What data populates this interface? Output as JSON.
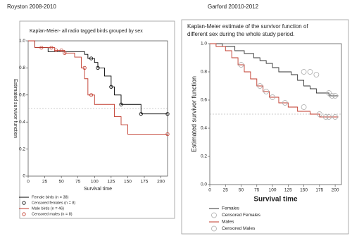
{
  "chart_data": [
    {
      "type": "step",
      "panel_heading": "Royston 2008-2010",
      "title": [
        "Kaplan-Meier-  all radio tagged birds grouped by sex"
      ],
      "xlabel": "Survival time",
      "ylabel": "Estimated survivor function",
      "xlim": [
        0,
        210
      ],
      "xticks": [
        0,
        25,
        50,
        75,
        100,
        125,
        150,
        175,
        200
      ],
      "ylim": [
        0,
        1
      ],
      "yticks": [
        0,
        {
          "value": 0.2,
          "label": "0.2"
        },
        {
          "value": 0.4,
          "label": "0.4"
        },
        {
          "value": 0.6,
          "label": "0.6"
        },
        {
          "value": 0.8,
          "label": "0.8"
        },
        {
          "value": 1,
          "label": "1.0"
        }
      ],
      "hline": 0.5,
      "series": [
        {
          "name": "Female birds (n = 38)",
          "kind": "step",
          "color": "#000000",
          "x": [
            0,
            10,
            30,
            85,
            90,
            100,
            105,
            115,
            125,
            130,
            140,
            170,
            210
          ],
          "values": [
            1,
            0.95,
            0.92,
            0.9,
            0.87,
            0.84,
            0.8,
            0.74,
            0.66,
            0.6,
            0.53,
            0.46,
            0.46
          ]
        },
        {
          "name": "Censored females (n = 8)",
          "kind": "censored",
          "color": "#000000",
          "x": [
            95,
            105,
            125,
            140,
            170,
            210
          ],
          "values": [
            0.87,
            0.8,
            0.66,
            0.53,
            0.46,
            0.46
          ]
        },
        {
          "name": "Male birds (n = 46)",
          "kind": "step",
          "color": "#c0392b",
          "x": [
            0,
            10,
            40,
            55,
            70,
            80,
            85,
            90,
            100,
            130,
            140,
            150,
            210
          ],
          "values": [
            1,
            0.95,
            0.93,
            0.91,
            0.88,
            0.8,
            0.72,
            0.6,
            0.53,
            0.44,
            0.38,
            0.31,
            0.31
          ]
        },
        {
          "name": "Censored males (n = 8)",
          "kind": "censored",
          "color": "#c0392b",
          "x": [
            20,
            35,
            42,
            50,
            55,
            85,
            95,
            210
          ],
          "values": [
            0.95,
            0.95,
            0.93,
            0.93,
            0.91,
            0.8,
            0.6,
            0.31
          ]
        }
      ]
    },
    {
      "type": "step",
      "panel_heading": "Garford 20010-2012",
      "title": [
        "Kaplan-Meier estimate of the survivor function of",
        "different sex during the whole study period."
      ],
      "xlabel": "Survival time",
      "ylabel": "Estimated survivor function",
      "xlim": [
        0,
        210
      ],
      "xticks": [
        0,
        25,
        50,
        75,
        100,
        125,
        150,
        175,
        200
      ],
      "ylim": [
        0,
        1
      ],
      "yticks": [
        {
          "value": 0,
          "label": "0.0"
        },
        {
          "value": 0.2,
          "label": "0.2"
        },
        {
          "value": 0.4,
          "label": "0.4"
        },
        {
          "value": 0.6,
          "label": "0.6"
        },
        {
          "value": 0.8,
          "label": "0.8"
        },
        {
          "value": 1,
          "label": "1.0"
        }
      ],
      "hline": 0.5,
      "series": [
        {
          "name": "Females",
          "kind": "step",
          "color": "#333333",
          "x": [
            0,
            20,
            40,
            55,
            70,
            80,
            90,
            100,
            110,
            130,
            140,
            150,
            160,
            170,
            190,
            205
          ],
          "values": [
            1,
            0.98,
            0.95,
            0.93,
            0.9,
            0.88,
            0.86,
            0.83,
            0.8,
            0.78,
            0.74,
            0.7,
            0.68,
            0.65,
            0.63,
            0.63
          ]
        },
        {
          "name": "Censored Females",
          "kind": "censored",
          "color": "#aaaaaa",
          "x": [
            150,
            160,
            170,
            190,
            195,
            200
          ],
          "values": [
            0.8,
            0.8,
            0.78,
            0.65,
            0.63,
            0.63
          ]
        },
        {
          "name": "Males",
          "kind": "step",
          "color": "#c0392b",
          "x": [
            0,
            10,
            25,
            35,
            45,
            55,
            65,
            75,
            85,
            95,
            110,
            125,
            140,
            160,
            175,
            205
          ],
          "values": [
            1,
            0.98,
            0.95,
            0.9,
            0.85,
            0.8,
            0.75,
            0.7,
            0.66,
            0.62,
            0.58,
            0.55,
            0.52,
            0.5,
            0.48,
            0.48
          ]
        },
        {
          "name": "Censored Males",
          "kind": "censored",
          "color": "#aaaaaa",
          "x": [
            50,
            80,
            90,
            100,
            120,
            150,
            175,
            185,
            190,
            200
          ],
          "values": [
            0.85,
            0.7,
            0.66,
            0.62,
            0.58,
            0.55,
            0.5,
            0.48,
            0.48,
            0.48
          ]
        }
      ]
    }
  ]
}
